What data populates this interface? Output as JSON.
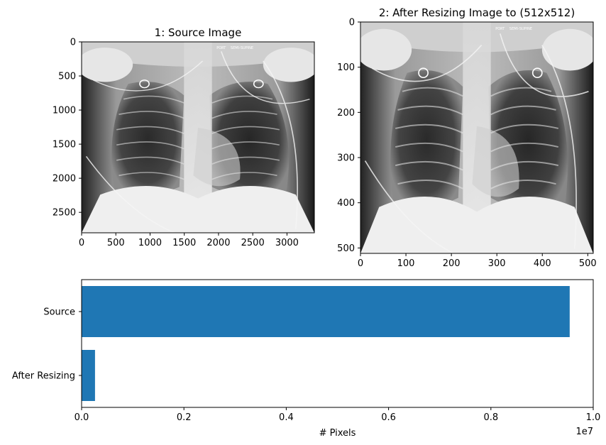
{
  "chart_data": [
    {
      "type": "image",
      "title": "1: Source Image",
      "image_content": "chest x-ray (frontal view)",
      "xlim": [
        0,
        3400
      ],
      "ylim": [
        2800,
        0
      ],
      "xticks": [
        "0",
        "500",
        "1000",
        "1500",
        "2000",
        "2500",
        "3000"
      ],
      "yticks": [
        "0",
        "500",
        "1000",
        "1500",
        "2000",
        "2500"
      ],
      "overlay_text": [
        "PORT",
        "SEMI-SUPINE"
      ]
    },
    {
      "type": "image",
      "title": "2: After Resizing Image to (512x512)",
      "image_content": "chest x-ray (frontal view), resized",
      "xlim": [
        0,
        512
      ],
      "ylim": [
        512,
        0
      ],
      "xticks": [
        "0",
        "100",
        "200",
        "300",
        "400",
        "500"
      ],
      "yticks": [
        "0",
        "100",
        "200",
        "300",
        "400",
        "500"
      ],
      "overlay_text": [
        "PORT",
        "SEMI-SUPINE"
      ]
    },
    {
      "type": "bar",
      "orientation": "horizontal",
      "categories": [
        "Source",
        "After Resizing"
      ],
      "values": [
        9540000,
        262144
      ],
      "xlabel": "# Pixels",
      "xlim": [
        0,
        10000000
      ],
      "xticks": [
        "0.0",
        "0.2",
        "0.4",
        "0.6",
        "0.8",
        "1.0"
      ],
      "offset_label": "1e7",
      "bar_color": "#1f77b4"
    }
  ]
}
